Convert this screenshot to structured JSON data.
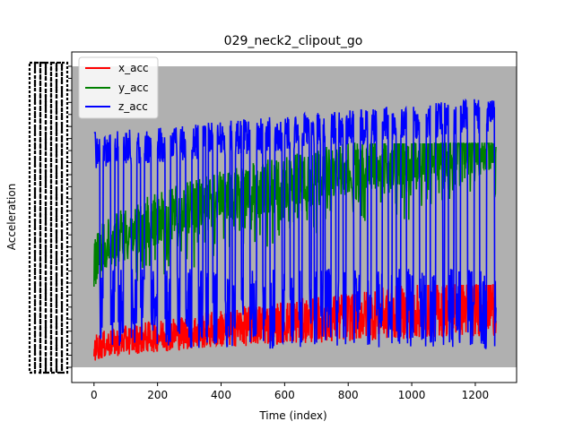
{
  "chart_data": {
    "type": "line",
    "title": "029_neck2_clipout_go",
    "xlabel": "Time (index)",
    "ylabel": "Acceleration",
    "xlim": [
      -70,
      1330
    ],
    "ylim": [
      0,
      1
    ],
    "x_ticks": [
      0,
      200,
      400,
      600,
      800,
      1000,
      1200
    ],
    "y_tick_labels_note": "dense overlapping tick labels (illegible)",
    "legend": {
      "location": "upper-left",
      "entries": [
        "x_acc",
        "y_acc",
        "z_acc"
      ]
    },
    "plot_background": "#b0b0b0",
    "grid": false,
    "series": [
      {
        "name": "x_acc",
        "color": "#ff0000"
      },
      {
        "name": "y_acc",
        "color": "#008000"
      },
      {
        "name": "z_acc",
        "color": "#0000ff"
      }
    ]
  }
}
